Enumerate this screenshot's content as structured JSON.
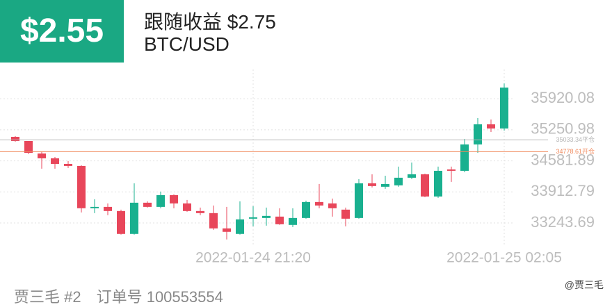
{
  "header": {
    "profit": "$2.55",
    "follow_label": "跟随收益 $2.75",
    "pair": "BTC/USD"
  },
  "footer": {
    "user": "贾三毛 #2",
    "order": "订单号 100553554",
    "watermark": "@贾三毛"
  },
  "chart_data": {
    "type": "candlestick",
    "categories": [
      null,
      null,
      null,
      null,
      null,
      null,
      null,
      null,
      null,
      null,
      null,
      null,
      null,
      null,
      null,
      null,
      null,
      null,
      "2022-01-24 21:20",
      null,
      null,
      null,
      null,
      null,
      null,
      null,
      null,
      null,
      null,
      null,
      null,
      null,
      null,
      null,
      null,
      null,
      null,
      "2022-01-25 02:05"
    ],
    "open": [
      35099,
      35009,
      34740,
      34636,
      34516,
      34472,
      33561,
      33590,
      33501,
      33008,
      33680,
      33590,
      33844,
      33665,
      33501,
      33456,
      33127,
      33008,
      33336,
      33351,
      33381,
      33202,
      33351,
      33695,
      33665,
      33531,
      33351,
      34098,
      34024,
      34054,
      34218,
      34292,
      33814,
      34397,
      34367,
      34935,
      35368,
      35278
    ],
    "high": [
      35114,
      35009,
      34785,
      34666,
      34576,
      34487,
      33755,
      33665,
      33531,
      34098,
      33710,
      33919,
      33859,
      33740,
      33575,
      33620,
      33590,
      33710,
      33605,
      33575,
      33561,
      33561,
      33725,
      34083,
      33770,
      33575,
      34188,
      34292,
      34262,
      34457,
      34546,
      34307,
      34457,
      34457,
      35054,
      35502,
      35472,
      36249
    ],
    "low": [
      34994,
      34725,
      34412,
      34412,
      34427,
      33471,
      33456,
      33411,
      32993,
      32993,
      33575,
      33561,
      33561,
      33486,
      33411,
      33097,
      32888,
      32993,
      33172,
      33187,
      33202,
      33157,
      33336,
      33561,
      33381,
      33172,
      33336,
      34009,
      33979,
      34024,
      34188,
      33799,
      33785,
      34128,
      34337,
      34755,
      35203,
      35233
    ],
    "close": [
      35009,
      34755,
      34636,
      34516,
      34472,
      33561,
      33590,
      33501,
      33008,
      33680,
      33590,
      33844,
      33665,
      33501,
      33456,
      33127,
      33053,
      33321,
      33366,
      33396,
      33216,
      33351,
      33695,
      33620,
      33561,
      33336,
      34098,
      34039,
      34083,
      34218,
      34292,
      33814,
      34367,
      34367,
      34935,
      35368,
      35278,
      36159
    ],
    "up_color": "#19b08f",
    "down_color": "#e8465a",
    "ylim": [
      32900,
      36550
    ],
    "yticks": [
      33243.69,
      33912.79,
      34581.89,
      35250.98,
      35920.08
    ],
    "grid": true,
    "reference_lines": [
      {
        "value": 35033.34,
        "label": "35033.34平仓",
        "color": "#b5b5b5"
      },
      {
        "value": 34778.61,
        "label": "34778.61开仓",
        "color": "#f08a5d"
      }
    ]
  }
}
